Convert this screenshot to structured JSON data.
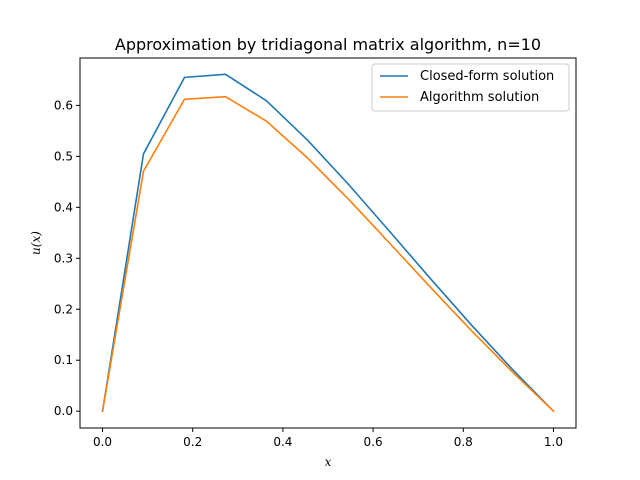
{
  "chart_data": {
    "type": "line",
    "title": "Approximation by tridiagonal matrix algorithm, n=10",
    "xlabel": "x",
    "ylabel": "u(x)",
    "xlim": [
      -0.05,
      1.05
    ],
    "ylim": [
      -0.033,
      0.693
    ],
    "xticks": [
      "0.0",
      "0.2",
      "0.4",
      "0.6",
      "0.8",
      "1.0"
    ],
    "yticks": [
      "0.0",
      "0.1",
      "0.2",
      "0.3",
      "0.4",
      "0.5",
      "0.6"
    ],
    "grid": false,
    "legend_position": "top-right",
    "x": [
      0,
      0.0909,
      0.1818,
      0.2727,
      0.3636,
      0.4545,
      0.5455,
      0.6364,
      0.7273,
      0.8182,
      0.9091,
      1.0
    ],
    "series": [
      {
        "name": "Closed-form solution",
        "color": "#1f77b4",
        "values": [
          0.0,
          0.505,
          0.655,
          0.661,
          0.609,
          0.532,
          0.445,
          0.353,
          0.26,
          0.169,
          0.082,
          0.0
        ]
      },
      {
        "name": "Algorithm solution",
        "color": "#ff7f0e",
        "values": [
          0.0,
          0.471,
          0.612,
          0.617,
          0.569,
          0.497,
          0.416,
          0.33,
          0.243,
          0.158,
          0.077,
          0.0
        ]
      }
    ]
  }
}
